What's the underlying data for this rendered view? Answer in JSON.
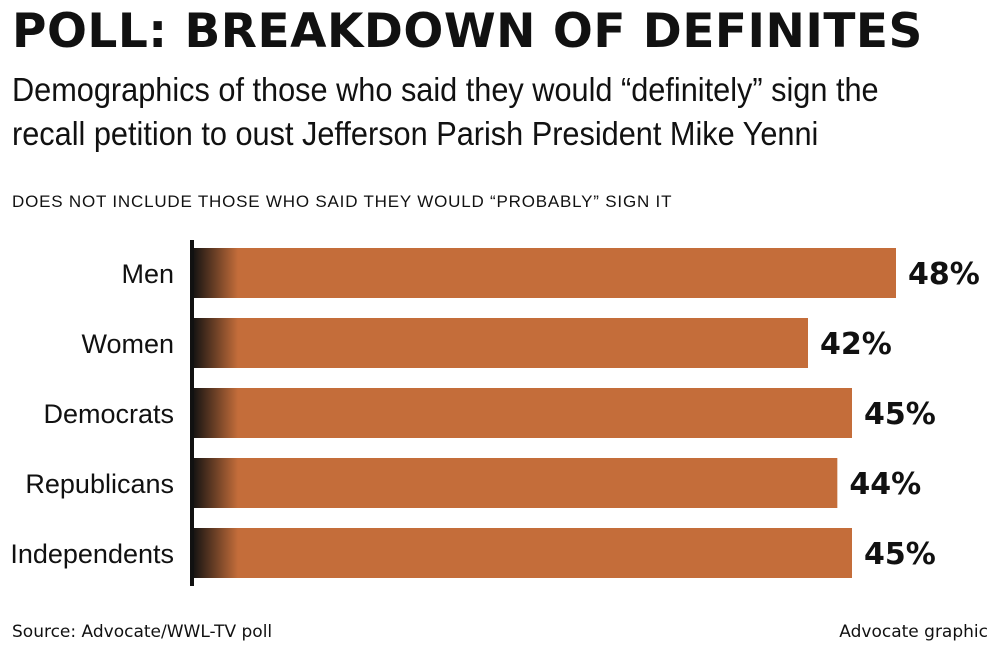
{
  "header": {
    "title": "POLL: BREAKDOWN OF DEFINITES",
    "subtitle": "Demographics of those who said they would “definitely” sign the recall petition to oust Jefferson Parish President Mike Yenni",
    "note": "DOES NOT INCLUDE THOSE WHO SAID THEY WOULD “PROBABLY” SIGN IT"
  },
  "footer": {
    "source": "Source: Advocate/WWL-TV poll",
    "credit": "Advocate graphic"
  },
  "colors": {
    "bar": "#c46d3a",
    "axis": "#111111"
  },
  "chart_data": {
    "type": "bar",
    "orientation": "horizontal",
    "categories": [
      "Men",
      "Women",
      "Democrats",
      "Republicans",
      "Independents"
    ],
    "values": [
      48,
      42,
      45,
      44,
      45
    ],
    "value_labels": [
      "48%",
      "42%",
      "45%",
      "44%",
      "45%"
    ],
    "unit": "%",
    "xlim": [
      0,
      48
    ],
    "grid": false,
    "legend": "none"
  }
}
